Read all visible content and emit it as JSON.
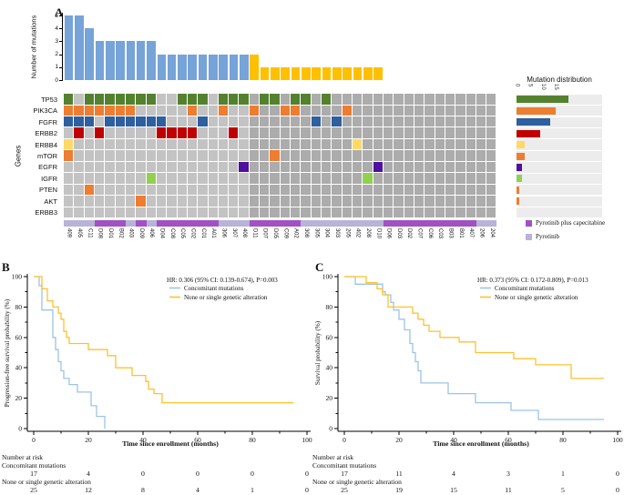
{
  "panel_a": {
    "label": "A",
    "count_axis_label": "Number of mutations",
    "genes_axis_label": "Genes",
    "distribution_title": "Mutation distribution",
    "legend": [
      {
        "label": "Pyrotinib plus capecitabine",
        "color": "#A152C2"
      },
      {
        "label": "Pyrotinib",
        "color": "#B9B3DA"
      }
    ]
  },
  "panel_b": {
    "label": "B"
  },
  "panel_c": {
    "label": "C"
  },
  "chart_data": [
    {
      "id": "mutation_counts",
      "type": "bar",
      "ylabel": "Number of mutations",
      "yticks": [
        0,
        1,
        2,
        3,
        4,
        5
      ],
      "ylim": [
        0,
        5
      ],
      "values": [
        5,
        5,
        4,
        3,
        3,
        3,
        3,
        3,
        3,
        2,
        2,
        2,
        2,
        2,
        2,
        2,
        2,
        2,
        2,
        1,
        1,
        1,
        1,
        1,
        1,
        1,
        1,
        1,
        1,
        1,
        1,
        0,
        0,
        0,
        0,
        0,
        0,
        0,
        0,
        0,
        0,
        0
      ],
      "blue_color": "#76A3D8",
      "yellow_color": "#FFC000",
      "yellow_from_column": 19
    },
    {
      "id": "oncoprint",
      "type": "heatmap",
      "rows": [
        "TP53",
        "PIK3CA",
        "FGFR",
        "ERBB2",
        "ERBB4",
        "mTOR",
        "EGFR",
        "IGFR",
        "PTEN",
        "AKT",
        "ERBB3"
      ],
      "columns": [
        "409",
        "405",
        "C11",
        "D08",
        "D01",
        "B02",
        "403",
        "D09",
        "406",
        "D04",
        "C08",
        "C05",
        "C02",
        "C01",
        "A01",
        "306",
        "307",
        "408",
        "D11",
        "D07",
        "D05",
        "C09",
        "A02",
        "308",
        "305",
        "304",
        "303",
        "205",
        "402",
        "208",
        "D10",
        "D06",
        "D03",
        "D02",
        "C07",
        "C06",
        "C03",
        "B03",
        "B01",
        "407",
        "206",
        "204"
      ],
      "cells": {
        "TP53": [
          1,
          3,
          4,
          5,
          6,
          7,
          8,
          9,
          12,
          13,
          14,
          16,
          17,
          18,
          20,
          21,
          23,
          24,
          26
        ],
        "PIK3CA": [
          1,
          2,
          3,
          4,
          5,
          6,
          7,
          13,
          16,
          19,
          22,
          23,
          28
        ],
        "FGFR": [
          1,
          2,
          3,
          5,
          6,
          7,
          8,
          9,
          10,
          14,
          25,
          27
        ],
        "ERBB2": [
          2,
          4,
          10,
          11,
          12,
          13,
          17
        ],
        "ERBB4": [
          1,
          29
        ],
        "mTOR": [
          1,
          21
        ],
        "EGFR": [
          18,
          31
        ],
        "IGFR": [
          9,
          30
        ],
        "PTEN": [
          3
        ],
        "AKT": [
          8
        ],
        "ERBB3": []
      },
      "row_colors": {
        "TP53": "#54812F",
        "PIK3CA": "#ED7D31",
        "FGFR": "#2E5F9E",
        "ERBB2": "#C00000",
        "ERBB4": "#FFD966",
        "mTOR": "#ED7D31",
        "EGFR": "#4E119D",
        "IGFR": "#92D050",
        "PTEN": "#ED7D31",
        "AKT": "#ED7D31",
        "ERBB3": "#999999"
      },
      "bg_light": "#C3C3C3",
      "bg_dark": "#ACACAC",
      "dark_from_column": 19,
      "treatment": {
        "dark_cols": [
          4,
          5,
          6,
          8,
          10,
          11,
          12,
          13,
          14,
          15,
          19,
          20,
          21,
          22,
          23,
          32,
          33,
          34,
          35,
          36,
          37,
          38,
          39,
          40
        ],
        "dark_color": "#A152C2",
        "light_color": "#B9B3DA",
        "dark_label": "Pyrotinib plus capecitabine",
        "light_label": "Pyrotinib"
      }
    },
    {
      "id": "mutation_distribution",
      "type": "bar",
      "title": "Mutation distribution",
      "orientation": "horizontal",
      "categories": [
        "TP53",
        "PIK3CA",
        "FGFR",
        "ERBB2",
        "ERBB4",
        "mTOR",
        "EGFR",
        "IGFR",
        "PTEN",
        "AKT",
        "ERBB3"
      ],
      "values": [
        20,
        15,
        13,
        9,
        3,
        3,
        2,
        2,
        1,
        1,
        0
      ],
      "ticks": [
        0,
        5,
        10,
        15
      ],
      "xlim": [
        0,
        21
      ]
    },
    {
      "id": "pfs_km",
      "type": "line",
      "hr_text": "HR: 0.306 (95% CI: 0.139-0.674), P=0.003",
      "ylabel": "Progression-free survival probability (%)",
      "xlabel": "Time since enrollment (months)",
      "xticks": [
        0,
        20,
        40,
        60,
        80,
        100
      ],
      "yticks": [
        0,
        20,
        40,
        60,
        80,
        100
      ],
      "xlim": [
        0,
        100
      ],
      "ylim": [
        0,
        100
      ],
      "series": [
        {
          "name": "Concomitant mutations",
          "color": "#9DC3E6",
          "points": [
            [
              0,
              100
            ],
            [
              2,
              94
            ],
            [
              3,
              78
            ],
            [
              7,
              60
            ],
            [
              8,
              52
            ],
            [
              9,
              44
            ],
            [
              10,
              38
            ],
            [
              11,
              33
            ],
            [
              13,
              29
            ],
            [
              16,
              24
            ],
            [
              21,
              15
            ],
            [
              23,
              8
            ],
            [
              26,
              0
            ]
          ]
        },
        {
          "name": "None or single genetic alteration",
          "color": "#FFC12E",
          "points": [
            [
              0,
              100
            ],
            [
              3,
              92
            ],
            [
              5,
              84
            ],
            [
              7,
              80
            ],
            [
              9,
              76
            ],
            [
              10,
              72
            ],
            [
              11,
              64
            ],
            [
              12,
              60
            ],
            [
              13,
              56
            ],
            [
              20,
              52
            ],
            [
              27,
              48
            ],
            [
              30,
              40
            ],
            [
              36,
              35
            ],
            [
              41,
              31
            ],
            [
              42,
              26
            ],
            [
              44,
              23
            ],
            [
              47,
              17
            ],
            [
              95,
              17
            ]
          ]
        }
      ],
      "risk_table": {
        "title": "Number at risk",
        "rows": [
          {
            "label": "Concomitant mutations",
            "values": [
              "17",
              "4",
              "0",
              "0",
              "0",
              "0"
            ]
          },
          {
            "label": "None or single genetic alteration",
            "values": [
              "25",
              "12",
              "8",
              "4",
              "1",
              "0"
            ]
          }
        ]
      }
    },
    {
      "id": "os_km",
      "type": "line",
      "hr_text": "HR: 0.373 (95% CI: 0.172-0.809), P=0.013",
      "ylabel": "Survival probability (%)",
      "xlabel": "Time since enrollment (months)",
      "xticks": [
        0,
        20,
        40,
        60,
        80,
        100
      ],
      "yticks": [
        0,
        20,
        40,
        60,
        80,
        100
      ],
      "xlim": [
        0,
        100
      ],
      "ylim": [
        0,
        100
      ],
      "series": [
        {
          "name": "Concomitant mutations",
          "color": "#9DC3E6",
          "points": [
            [
              0,
              100
            ],
            [
              4,
              95
            ],
            [
              14,
              90
            ],
            [
              15,
              88
            ],
            [
              17,
              83
            ],
            [
              18,
              78
            ],
            [
              20,
              72
            ],
            [
              22,
              65
            ],
            [
              24,
              56
            ],
            [
              25,
              50
            ],
            [
              26,
              44
            ],
            [
              27,
              38
            ],
            [
              28,
              30
            ],
            [
              38,
              23
            ],
            [
              48,
              17
            ],
            [
              61,
              12
            ],
            [
              71,
              6
            ],
            [
              95,
              6
            ]
          ]
        },
        {
          "name": "None or single genetic alteration",
          "color": "#FFC12E",
          "points": [
            [
              0,
              100
            ],
            [
              8,
              96
            ],
            [
              12,
              92
            ],
            [
              14,
              88
            ],
            [
              16,
              80
            ],
            [
              25,
              76
            ],
            [
              27,
              72
            ],
            [
              29,
              68
            ],
            [
              31,
              64
            ],
            [
              35,
              60
            ],
            [
              42,
              57
            ],
            [
              48,
              50
            ],
            [
              62,
              46
            ],
            [
              70,
              42
            ],
            [
              83,
              33
            ],
            [
              95,
              33
            ]
          ]
        }
      ],
      "risk_table": {
        "title": "Number at risk",
        "rows": [
          {
            "label": "Concomitant mutations",
            "values": [
              "17",
              "11",
              "4",
              "3",
              "1",
              "0"
            ]
          },
          {
            "label": "None or single genetic alteration",
            "values": [
              "25",
              "19",
              "15",
              "11",
              "5",
              "0"
            ]
          }
        ]
      }
    }
  ]
}
